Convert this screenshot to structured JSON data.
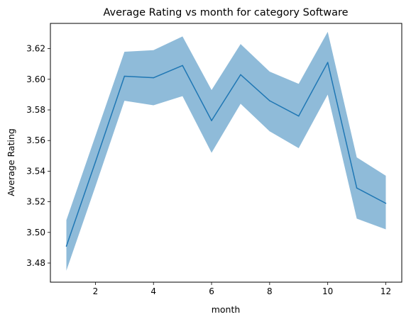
{
  "chart_data": {
    "type": "line",
    "title": "Average Rating vs month for category Software",
    "xlabel": "month",
    "ylabel": "Average Rating",
    "xlim": [
      0.45,
      12.55
    ],
    "ylim": [
      3.4675,
      3.6365
    ],
    "xticks": [
      2,
      4,
      6,
      8,
      10,
      12
    ],
    "yticks": [
      3.48,
      3.5,
      3.52,
      3.54,
      3.56,
      3.58,
      3.6,
      3.62
    ],
    "ytick_labels": [
      "3.48",
      "3.50",
      "3.52",
      "3.54",
      "3.56",
      "3.58",
      "3.60",
      "3.62"
    ],
    "grid": false,
    "legend": "none",
    "series": [
      {
        "x": [
          1,
          2,
          3,
          4,
          5,
          6,
          7,
          8,
          9,
          10,
          11,
          12
        ],
        "y": [
          3.491,
          3.546,
          3.602,
          3.601,
          3.609,
          3.573,
          3.603,
          3.586,
          3.576,
          3.611,
          3.529,
          3.519
        ],
        "ci_lower": [
          3.475,
          3.53,
          3.586,
          3.583,
          3.589,
          3.552,
          3.584,
          3.566,
          3.555,
          3.59,
          3.509,
          3.502
        ],
        "ci_upper": [
          3.508,
          3.563,
          3.618,
          3.619,
          3.628,
          3.593,
          3.623,
          3.605,
          3.597,
          3.631,
          3.549,
          3.537
        ],
        "line_color": "#1f77b4",
        "band_color": "#1f77b4",
        "band_opacity": 0.5
      }
    ]
  }
}
